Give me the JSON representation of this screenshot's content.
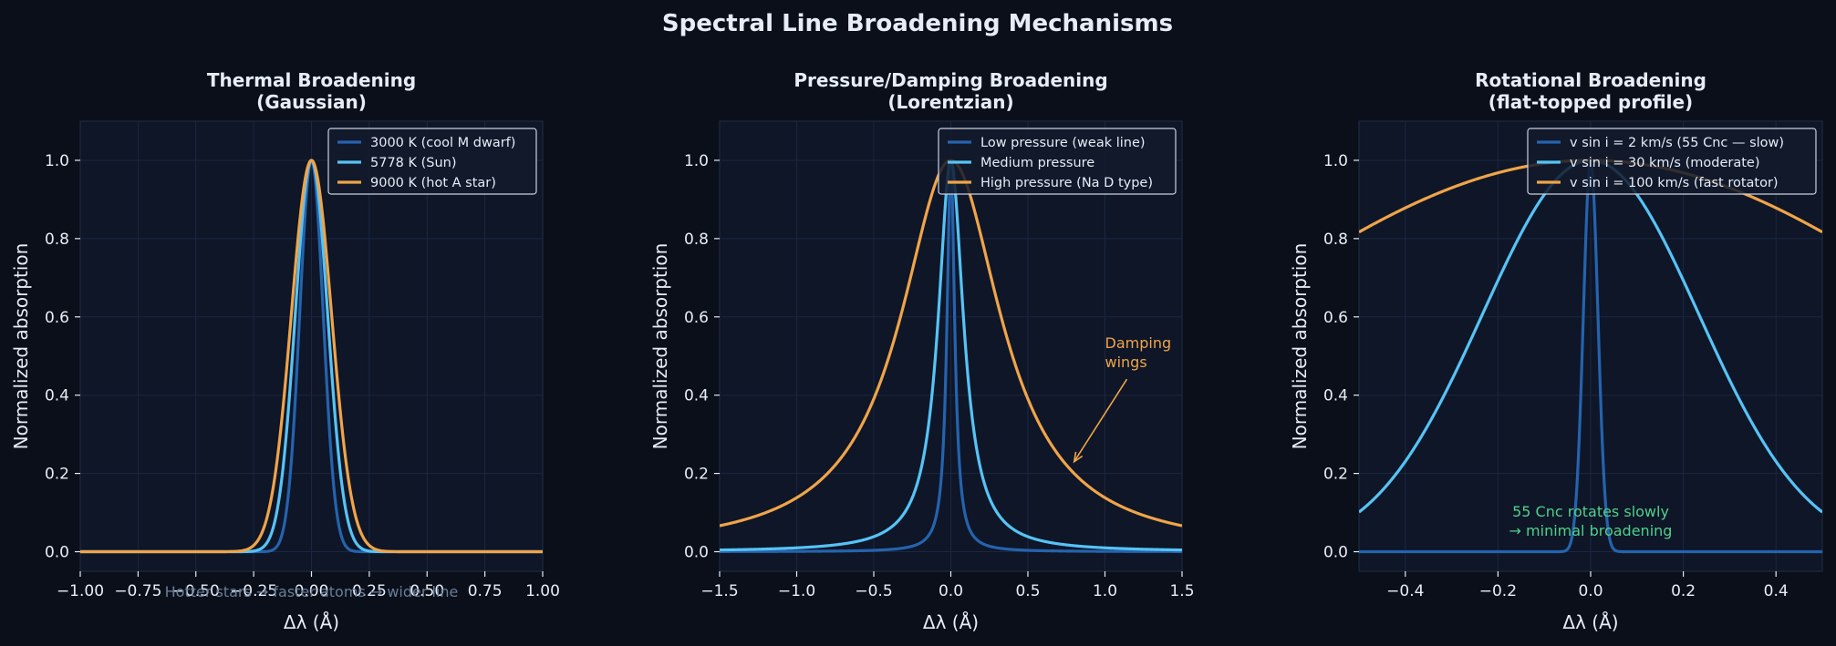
{
  "figure": {
    "title": "Spectral Line Broadening Mechanisms"
  },
  "colors": {
    "background": "#0a0f1a",
    "axes_bg": "#0e1628",
    "series": [
      "#2563ad",
      "#56c3f5",
      "#f0a448"
    ]
  },
  "chart_data": [
    {
      "type": "line",
      "title_lines": [
        "Thermal Broadening",
        "(Gaussian)"
      ],
      "xlabel": "Δλ (Å)",
      "ylabel": "Normalized absorption",
      "xlim": [
        -1.0,
        1.0
      ],
      "ylim": [
        -0.05,
        1.1
      ],
      "xticks": [
        -1.0,
        -0.75,
        -0.5,
        -0.25,
        0.0,
        0.25,
        0.5,
        0.75,
        1.0
      ],
      "xtick_labels": [
        "−1.00",
        "−0.75",
        "−0.50",
        "−0.25",
        "0.00",
        "0.25",
        "0.50",
        "0.75",
        "1.00"
      ],
      "yticks": [
        0.0,
        0.2,
        0.4,
        0.6,
        0.8,
        1.0
      ],
      "ytick_labels": [
        "0.0",
        "0.2",
        "0.4",
        "0.6",
        "0.8",
        "1.0"
      ],
      "grid": true,
      "legend_position": "top-right",
      "profile": "gaussian",
      "series": [
        {
          "name": "3000 K (cool M dwarf)",
          "fwhm": 0.12
        },
        {
          "name": "5778 K (Sun)",
          "fwhm": 0.165
        },
        {
          "name": "9000 K (hot A star)",
          "fwhm": 0.205
        }
      ],
      "annotations": [
        {
          "text": "Hotter stars → faster atoms → wider line",
          "x": 0.0,
          "y": -0.115,
          "style": "faint"
        }
      ]
    },
    {
      "type": "line",
      "title_lines": [
        "Pressure/Damping Broadening",
        "(Lorentzian)"
      ],
      "xlabel": "Δλ (Å)",
      "ylabel": "Normalized absorption",
      "xlim": [
        -1.5,
        1.5
      ],
      "ylim": [
        -0.05,
        1.1
      ],
      "xticks": [
        -1.5,
        -1.0,
        -0.5,
        0.0,
        0.5,
        1.0,
        1.5
      ],
      "xtick_labels": [
        "−1.5",
        "−1.0",
        "−0.5",
        "0.0",
        "0.5",
        "1.0",
        "1.5"
      ],
      "yticks": [
        0.0,
        0.2,
        0.4,
        0.6,
        0.8,
        1.0
      ],
      "ytick_labels": [
        "0.0",
        "0.2",
        "0.4",
        "0.6",
        "0.8",
        "1.0"
      ],
      "grid": true,
      "legend_position": "top-right",
      "profile": "lorentzian",
      "series": [
        {
          "name": "Low pressure (weak line)",
          "hwhm": 0.03
        },
        {
          "name": "Medium pressure",
          "hwhm": 0.1
        },
        {
          "name": "High pressure (Na D type)",
          "hwhm": 0.4
        }
      ],
      "annotations": [
        {
          "text_lines": [
            "Damping",
            "wings"
          ],
          "x": 1.0,
          "y": 0.52,
          "arrow_to": [
            0.8,
            0.23
          ],
          "style": "orange"
        }
      ]
    },
    {
      "type": "line",
      "title_lines": [
        "Rotational Broadening",
        "(flat-topped profile)"
      ],
      "xlabel": "Δλ (Å)",
      "ylabel": "Normalized absorption",
      "xlim": [
        -0.5,
        0.5
      ],
      "ylim": [
        -0.05,
        1.1
      ],
      "xticks": [
        -0.4,
        -0.2,
        0.0,
        0.2,
        0.4
      ],
      "xtick_labels": [
        "−0.4",
        "−0.2",
        "0.0",
        "0.2",
        "0.4"
      ],
      "yticks": [
        0.0,
        0.2,
        0.4,
        0.6,
        0.8,
        1.0
      ],
      "ytick_labels": [
        "0.0",
        "0.2",
        "0.4",
        "0.6",
        "0.8",
        "1.0"
      ],
      "grid": true,
      "legend_position": "top-right",
      "profile": "gaussian",
      "series": [
        {
          "name": "v sin i = 2 km/s (55 Cnc — slow)",
          "fwhm": 0.037
        },
        {
          "name": "v sin i = 30 km/s (moderate)",
          "fwhm": 0.55
        },
        {
          "name": "v sin i = 100 km/s (fast rotator)",
          "fwhm": 1.85
        }
      ],
      "annotations": [
        {
          "text_lines": [
            "55 Cnc rotates slowly",
            "→ minimal broadening"
          ],
          "x": 0.0,
          "y": 0.09,
          "style": "green"
        }
      ]
    }
  ]
}
